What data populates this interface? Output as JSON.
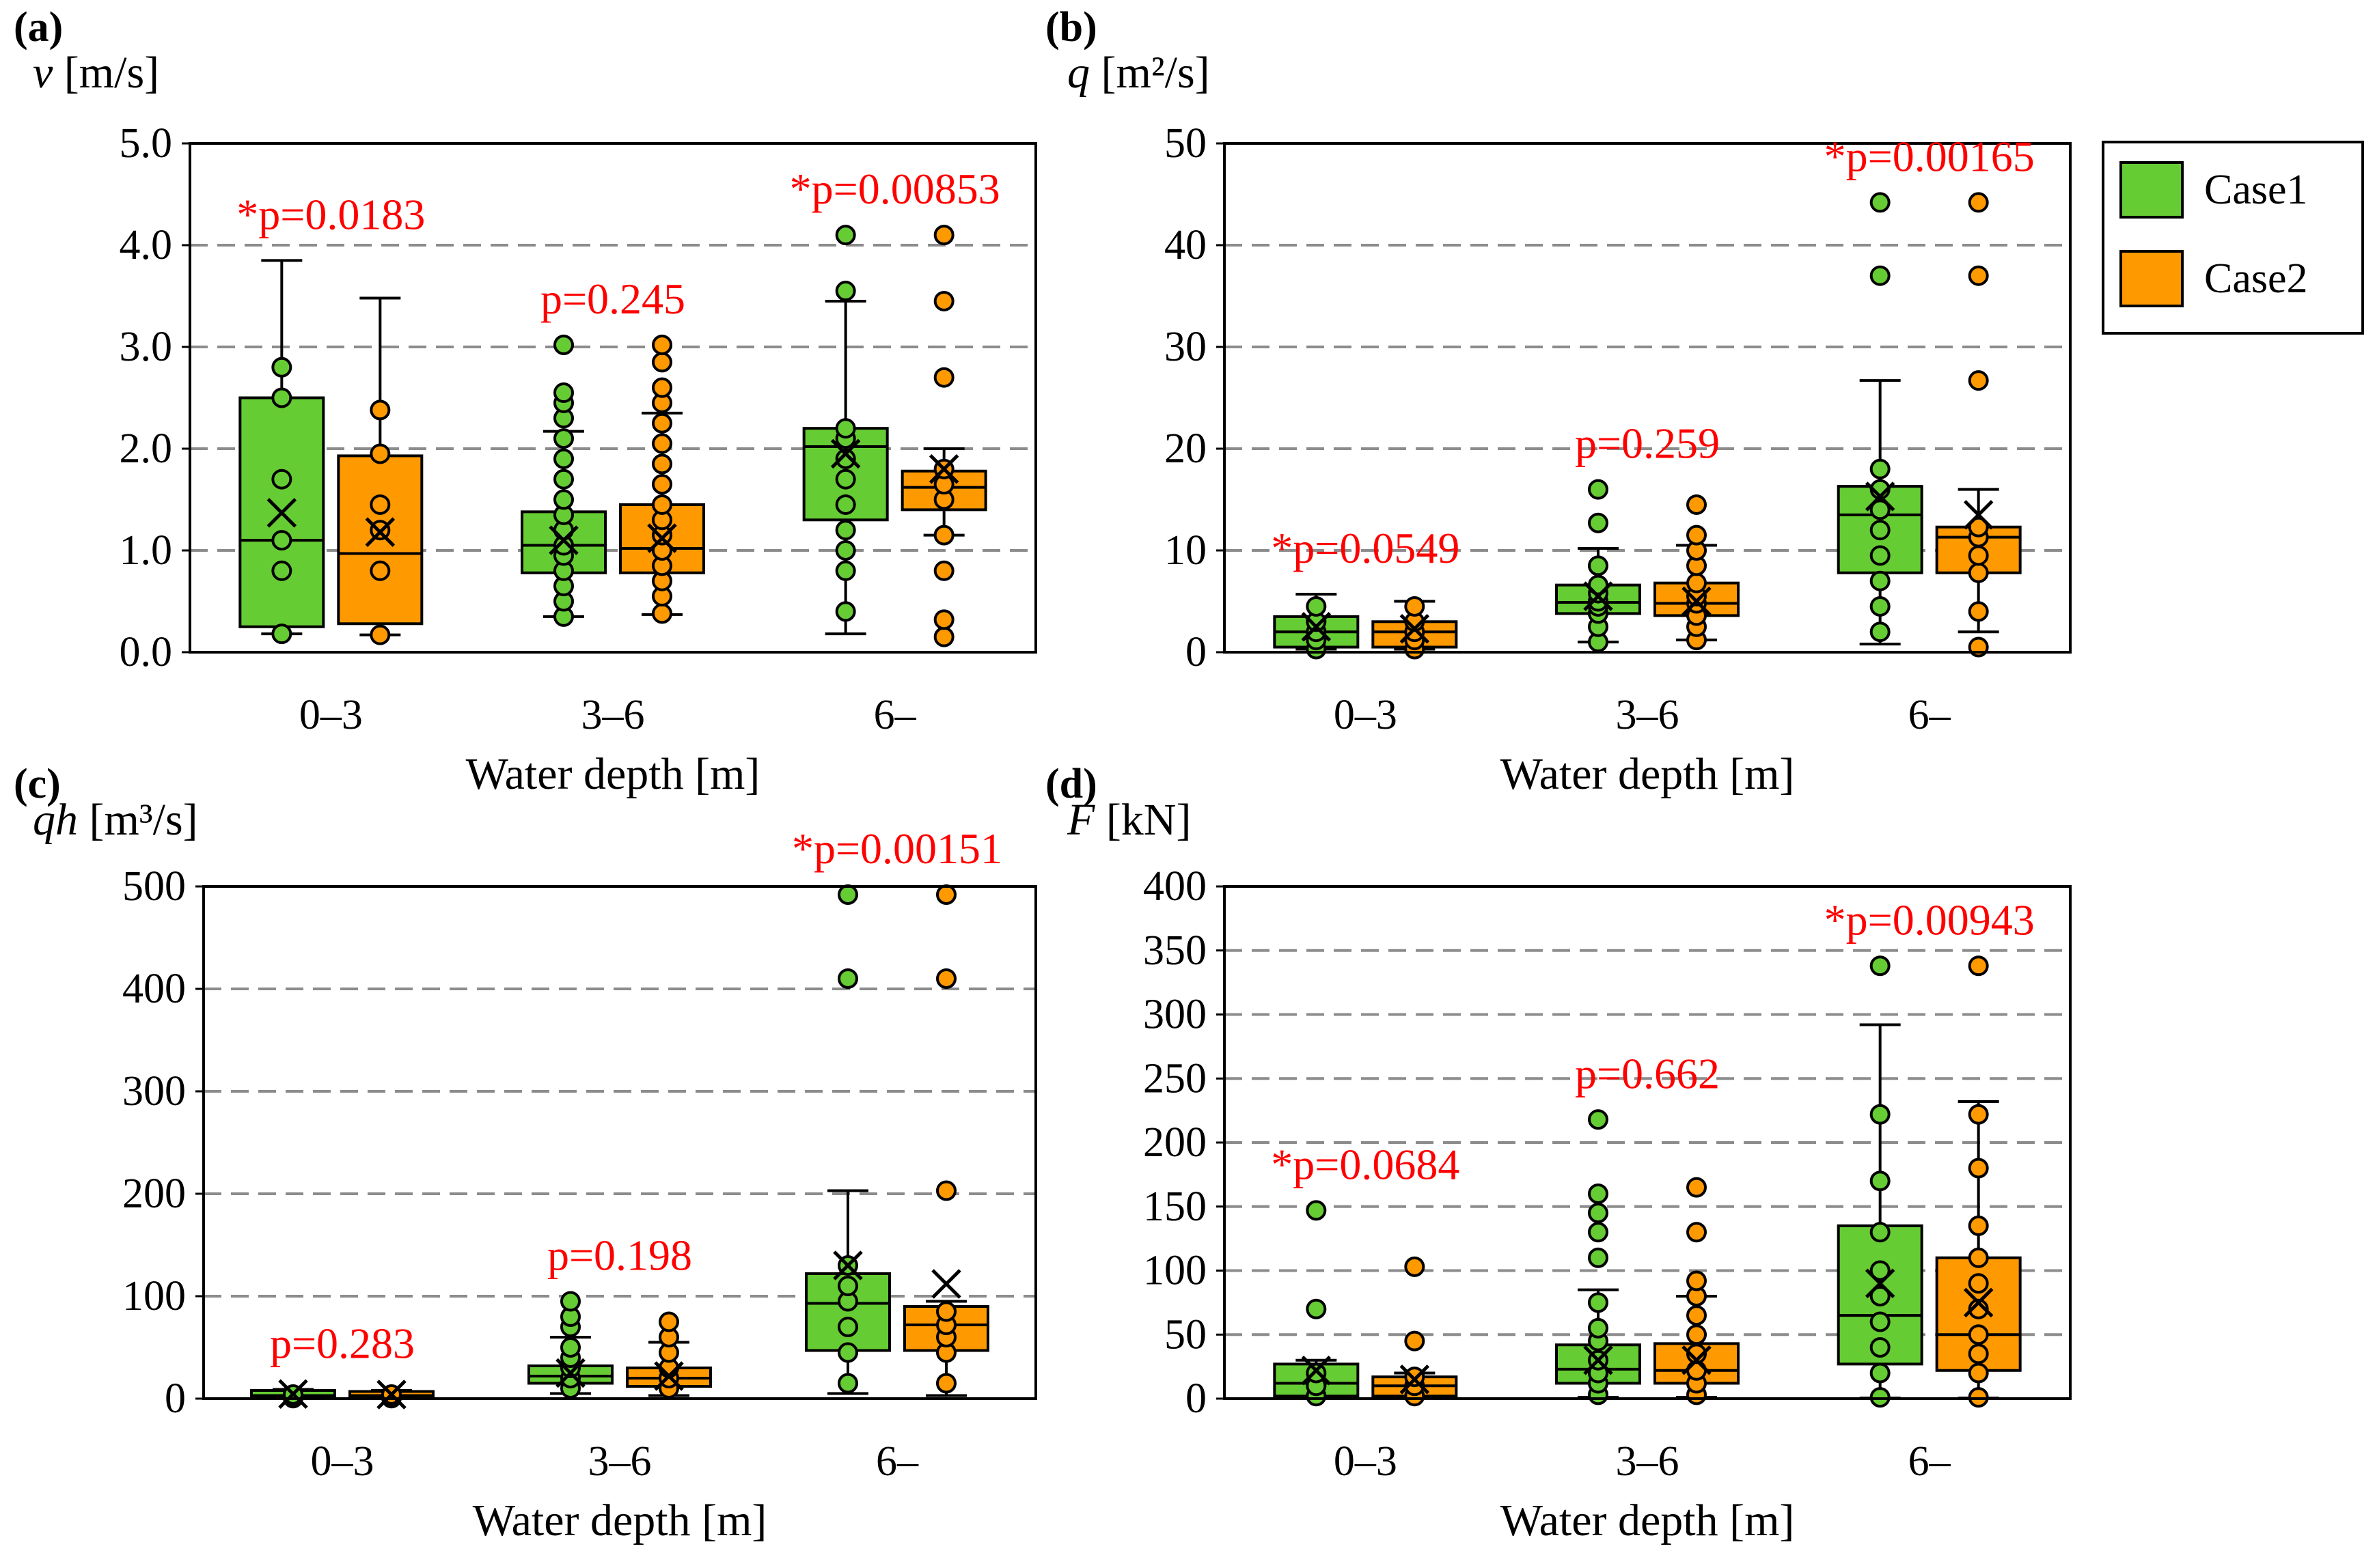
{
  "chart_data": [
    {
      "type": "box",
      "panel": "(a)",
      "ylabel_var": "v",
      "ylabel_unit": " [m/s]",
      "xlabel": "Water depth [m]",
      "categories": [
        "0–3",
        "3–6",
        "6–"
      ],
      "ylim": [
        0,
        5
      ],
      "yticks": [
        0,
        1,
        2,
        3,
        4,
        5
      ],
      "ytick_labels": [
        "0.0",
        "1.0",
        "2.0",
        "3.0",
        "4.0",
        "5.0"
      ],
      "p_labels": [
        "*p=0.0183",
        "p=0.245",
        "*p=0.00853"
      ],
      "series": [
        {
          "name": "Case1",
          "color": "#66cc33",
          "boxes": [
            {
              "q1": 0.25,
              "median": 1.1,
              "q3": 2.5,
              "mean": 1.37,
              "whisker_low": 0.18,
              "whisker_high": 3.85,
              "points": [
                0.18,
                0.8,
                1.1,
                1.7,
                2.5,
                2.8
              ]
            },
            {
              "q1": 0.78,
              "median": 1.05,
              "q3": 1.38,
              "mean": 1.1,
              "whisker_low": 0.35,
              "whisker_high": 2.17,
              "points": [
                0.35,
                0.5,
                0.65,
                0.8,
                0.95,
                1.05,
                1.2,
                1.35,
                1.5,
                1.7,
                1.9,
                2.1,
                2.3,
                2.45,
                2.55,
                3.02
              ]
            },
            {
              "q1": 1.3,
              "median": 2.02,
              "q3": 2.2,
              "mean": 1.95,
              "whisker_low": 0.18,
              "whisker_high": 3.45,
              "points": [
                0.4,
                0.8,
                1.0,
                1.2,
                1.45,
                1.7,
                1.9,
                2.1,
                2.2,
                3.55,
                4.1
              ]
            }
          ]
        },
        {
          "name": "Case2",
          "color": "#ff9900",
          "boxes": [
            {
              "q1": 0.28,
              "median": 0.97,
              "q3": 1.93,
              "mean": 1.18,
              "whisker_low": 0.17,
              "whisker_high": 3.48,
              "points": [
                0.17,
                0.8,
                1.2,
                1.45,
                1.95,
                2.38
              ]
            },
            {
              "q1": 0.78,
              "median": 1.02,
              "q3": 1.45,
              "mean": 1.12,
              "whisker_low": 0.37,
              "whisker_high": 2.35,
              "points": [
                0.38,
                0.55,
                0.7,
                0.85,
                1.0,
                1.15,
                1.3,
                1.45,
                1.65,
                1.85,
                2.05,
                2.25,
                2.45,
                2.6,
                2.85,
                3.02
              ]
            },
            {
              "q1": 1.4,
              "median": 1.62,
              "q3": 1.78,
              "mean": 1.8,
              "whisker_low": 1.15,
              "whisker_high": 2.0,
              "points": [
                0.15,
                0.32,
                0.8,
                1.15,
                1.5,
                1.65,
                1.8,
                2.7,
                3.45,
                4.1
              ]
            }
          ]
        }
      ]
    },
    {
      "type": "box",
      "panel": "(b)",
      "ylabel_var": "q",
      "ylabel_unit": " [m²/s]",
      "xlabel": "Water depth [m]",
      "categories": [
        "0–3",
        "3–6",
        "6–"
      ],
      "ylim": [
        0,
        50
      ],
      "yticks": [
        0,
        10,
        20,
        30,
        40,
        50
      ],
      "ytick_labels": [
        "0",
        "10",
        "20",
        "30",
        "40",
        "50"
      ],
      "p_labels": [
        "*p=0.0549",
        "p=0.259",
        "*p=0.00165"
      ],
      "series": [
        {
          "name": "Case1",
          "color": "#66cc33",
          "boxes": [
            {
              "q1": 0.5,
              "median": 2.0,
              "q3": 3.5,
              "mean": 2.5,
              "whisker_low": 0.3,
              "whisker_high": 5.7,
              "points": [
                0.3,
                1.2,
                2.0,
                3.0,
                4.5
              ]
            },
            {
              "q1": 3.8,
              "median": 4.9,
              "q3": 6.6,
              "mean": 5.5,
              "whisker_low": 1.0,
              "whisker_high": 10.2,
              "points": [
                1.0,
                2.5,
                3.8,
                4.5,
                5.0,
                5.8,
                6.6,
                8.5,
                12.7,
                16.0
              ]
            },
            {
              "q1": 7.8,
              "median": 13.5,
              "q3": 16.3,
              "mean": 15.3,
              "whisker_low": 0.8,
              "whisker_high": 26.7,
              "points": [
                2.0,
                4.5,
                7.0,
                9.5,
                12.0,
                14.0,
                16.0,
                18.0,
                37.0,
                44.2
              ]
            }
          ]
        },
        {
          "name": "Case2",
          "color": "#ff9900",
          "boxes": [
            {
              "q1": 0.5,
              "median": 2.0,
              "q3": 3.0,
              "mean": 2.3,
              "whisker_low": 0.3,
              "whisker_high": 5.0,
              "points": [
                0.3,
                1.2,
                2.0,
                3.0,
                4.5
              ]
            },
            {
              "q1": 3.6,
              "median": 4.8,
              "q3": 6.8,
              "mean": 5.0,
              "whisker_low": 1.2,
              "whisker_high": 10.5,
              "points": [
                1.2,
                2.5,
                3.6,
                4.8,
                5.5,
                6.8,
                8.5,
                10.0,
                11.5,
                14.5
              ]
            },
            {
              "q1": 7.8,
              "median": 11.3,
              "q3": 12.3,
              "mean": 13.5,
              "whisker_low": 2.0,
              "whisker_high": 16.0,
              "points": [
                0.5,
                4.0,
                7.8,
                9.5,
                11.3,
                12.3,
                26.7,
                37.0,
                44.2
              ]
            }
          ]
        }
      ]
    },
    {
      "type": "box",
      "panel": "(c)",
      "ylabel_var": "qh",
      "ylabel_unit": " [m³/s]",
      "xlabel": "Water depth [m]",
      "categories": [
        "0–3",
        "3–6",
        "6–"
      ],
      "ylim": [
        0,
        500
      ],
      "yticks": [
        0,
        100,
        200,
        300,
        400,
        500
      ],
      "ytick_labels": [
        "0",
        "100",
        "200",
        "300",
        "400",
        "500"
      ],
      "p_labels": [
        "p=0.283",
        "p=0.198",
        "*p=0.00151"
      ],
      "series": [
        {
          "name": "Case1",
          "color": "#66cc33",
          "boxes": [
            {
              "q1": 0.5,
              "median": 3.0,
              "q3": 8.0,
              "mean": 4.5,
              "whisker_low": 0.2,
              "whisker_high": 9.0,
              "points": [
                0.5,
                2.0,
                4.0
              ]
            },
            {
              "q1": 15.0,
              "median": 22.0,
              "q3": 32.0,
              "mean": 25.0,
              "whisker_low": 5.0,
              "whisker_high": 60.0,
              "points": [
                10.0,
                20.0,
                30.0,
                40.0,
                50.0,
                70.0,
                80.0,
                95.0
              ]
            },
            {
              "q1": 47.0,
              "median": 93.0,
              "q3": 122.0,
              "mean": 130.0,
              "whisker_low": 5.0,
              "whisker_high": 203.0,
              "points": [
                15.0,
                45.0,
                70.0,
                95.0,
                110.0,
                130.0,
                410.0,
                492.0
              ]
            }
          ]
        },
        {
          "name": "Case2",
          "color": "#ff9900",
          "boxes": [
            {
              "q1": 0.5,
              "median": 3.0,
              "q3": 7.0,
              "mean": 4.0,
              "whisker_low": 0.2,
              "whisker_high": 8.0,
              "points": [
                0.5,
                2.0,
                4.0
              ]
            },
            {
              "q1": 12.0,
              "median": 20.0,
              "q3": 30.0,
              "mean": 22.0,
              "whisker_low": 3.0,
              "whisker_high": 55.0,
              "points": [
                10.0,
                20.0,
                30.0,
                45.0,
                60.0,
                75.0
              ]
            },
            {
              "q1": 47.0,
              "median": 72.0,
              "q3": 90.0,
              "mean": 112.0,
              "whisker_low": 3.0,
              "whisker_high": 95.0,
              "points": [
                15.0,
                45.0,
                60.0,
                72.0,
                85.0,
                203.0,
                410.0,
                492.0
              ]
            }
          ]
        }
      ]
    },
    {
      "type": "box",
      "panel": "(d)",
      "ylabel_var": "F",
      "ylabel_unit": " [kN]",
      "xlabel": "Water depth [m]",
      "categories": [
        "0–3",
        "3–6",
        "6–"
      ],
      "ylim": [
        0,
        400
      ],
      "yticks": [
        0,
        50,
        100,
        150,
        200,
        250,
        300,
        350,
        400
      ],
      "ytick_labels": [
        "0",
        "50",
        "100",
        "150",
        "200",
        "250",
        "300",
        "350",
        "400"
      ],
      "p_labels": [
        "*p=0.0684",
        "p=0.662",
        "*p=0.00943"
      ],
      "series": [
        {
          "name": "Case1",
          "color": "#66cc33",
          "boxes": [
            {
              "q1": 2.0,
              "median": 12.0,
              "q3": 27.0,
              "mean": 22.0,
              "whisker_low": 0.5,
              "whisker_high": 30.0,
              "points": [
                2.0,
                10.0,
                20.0,
                70.0,
                147.0
              ]
            },
            {
              "q1": 12.0,
              "median": 23.0,
              "q3": 42.0,
              "mean": 30.0,
              "whisker_low": 1.0,
              "whisker_high": 85.0,
              "points": [
                3.0,
                12.0,
                20.0,
                30.0,
                45.0,
                55.0,
                75.0,
                110.0,
                130.0,
                145.0,
                160.0,
                218.0
              ]
            },
            {
              "q1": 27.0,
              "median": 65.0,
              "q3": 135.0,
              "mean": 90.0,
              "whisker_low": 0.5,
              "whisker_high": 292.0,
              "points": [
                1.0,
                20.0,
                40.0,
                60.0,
                80.0,
                100.0,
                130.0,
                170.0,
                222.0,
                338.0
              ]
            }
          ]
        },
        {
          "name": "Case2",
          "color": "#ff9900",
          "boxes": [
            {
              "q1": 2.0,
              "median": 10.0,
              "q3": 17.0,
              "mean": 15.0,
              "whisker_low": 0.5,
              "whisker_high": 20.0,
              "points": [
                2.0,
                10.0,
                17.0,
                45.0,
                103.0
              ]
            },
            {
              "q1": 12.0,
              "median": 22.0,
              "q3": 43.0,
              "mean": 30.0,
              "whisker_low": 1.0,
              "whisker_high": 80.0,
              "points": [
                3.0,
                12.0,
                22.0,
                35.0,
                50.0,
                65.0,
                80.0,
                92.0,
                130.0,
                165.0
              ]
            },
            {
              "q1": 22.0,
              "median": 50.0,
              "q3": 110.0,
              "mean": 75.0,
              "whisker_low": 0.5,
              "whisker_high": 232.0,
              "points": [
                1.0,
                20.0,
                35.0,
                50.0,
                70.0,
                90.0,
                110.0,
                135.0,
                180.0,
                222.0,
                338.0
              ]
            }
          ]
        }
      ]
    }
  ],
  "legend": [
    {
      "label": "Case1",
      "color": "#66cc33"
    },
    {
      "label": "Case2",
      "color": "#ff9900"
    }
  ]
}
